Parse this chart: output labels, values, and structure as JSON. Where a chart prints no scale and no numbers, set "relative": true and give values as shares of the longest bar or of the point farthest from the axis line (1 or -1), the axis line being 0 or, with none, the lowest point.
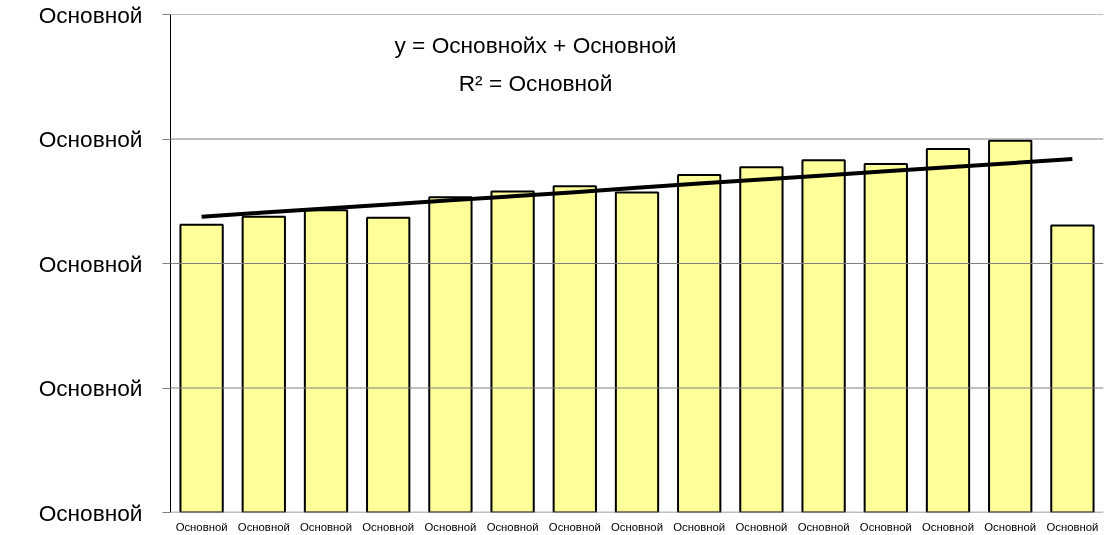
{
  "chart_data": {
    "type": "bar",
    "relative": true,
    "categories": [
      "Основной",
      "Основной",
      "Основной",
      "Основной",
      "Основной",
      "Основной",
      "Основной",
      "Основной",
      "Основной",
      "Основной",
      "Основной",
      "Основной",
      "Основной",
      "Основной",
      "Основной"
    ],
    "series": [
      {
        "color": "#ffff99",
        "values": [
          0.774,
          0.796,
          0.813,
          0.793,
          0.848,
          0.864,
          0.878,
          0.861,
          0.908,
          0.929,
          0.948,
          0.938,
          0.978,
          1,
          0.772
        ]
      },
      {
        "type": "line",
        "color": "#000000",
        "values": [
          0.796,
          0.807,
          0.818,
          0.829,
          0.84,
          0.851,
          0.862,
          0.874,
          0.885,
          0.896,
          0.907,
          0.918,
          0.929,
          0.94,
          0.951
        ]
      }
    ],
    "annotations": [
      "y = Основнойx + Основной",
      "R² = Основной"
    ],
    "ref_lines": [
      {
        "axis": "y",
        "value": 0,
        "label": "Основной",
        "color": "#808080"
      },
      {
        "axis": "y",
        "value": 0.335,
        "label": "Основной",
        "color": "#808080"
      },
      {
        "axis": "y",
        "value": 0.67,
        "label": "Основной",
        "color": "#808080"
      },
      {
        "axis": "y",
        "value": 1.005,
        "label": "Основной",
        "color": "#808080"
      },
      {
        "axis": "y",
        "value": 1.34,
        "label": "Основной",
        "color": "#808080"
      }
    ]
  }
}
